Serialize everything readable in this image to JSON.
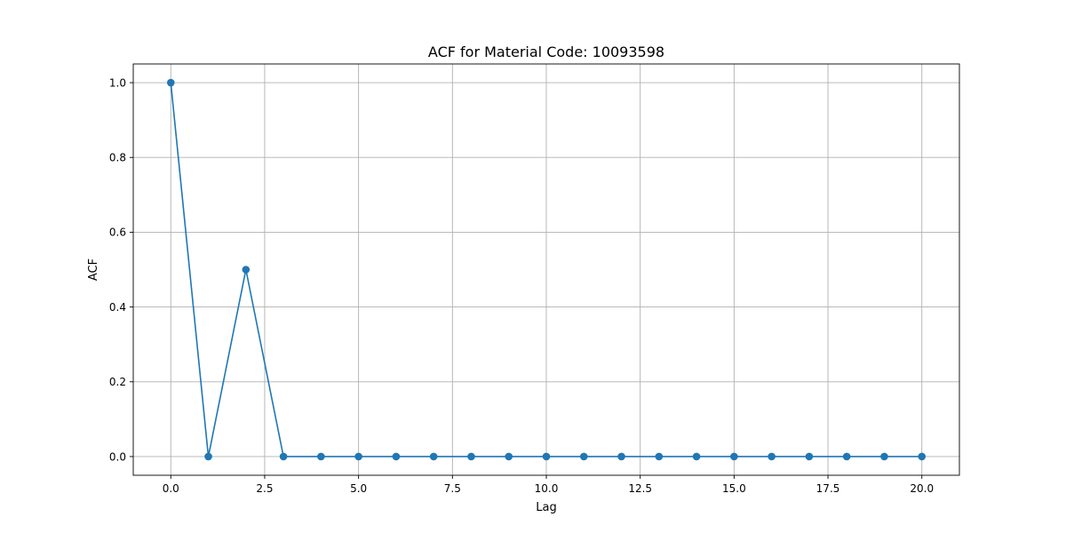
{
  "chart_data": {
    "type": "line",
    "title": "ACF for Material Code: 10093598",
    "xlabel": "Lag",
    "ylabel": "ACF",
    "xlim": [
      -1,
      21
    ],
    "ylim": [
      -0.05,
      1.05
    ],
    "xticks": [
      0,
      2.5,
      5,
      7.5,
      10,
      12.5,
      15,
      17.5,
      20
    ],
    "xtick_labels": [
      "0.0",
      "2.5",
      "5.0",
      "7.5",
      "10.0",
      "12.5",
      "15.0",
      "17.5",
      "20.0"
    ],
    "yticks": [
      0,
      0.2,
      0.4,
      0.6,
      0.8,
      1.0
    ],
    "ytick_labels": [
      "0.0",
      "0.2",
      "0.4",
      "0.6",
      "0.8",
      "1.0"
    ],
    "grid": true,
    "marker": "circle",
    "line_color": "#1f77b4",
    "x": [
      0,
      1,
      2,
      3,
      4,
      5,
      6,
      7,
      8,
      9,
      10,
      11,
      12,
      13,
      14,
      15,
      16,
      17,
      18,
      19,
      20
    ],
    "values": [
      1.0,
      0.0,
      0.5,
      0.0,
      0.0,
      0.0,
      0.0,
      0.0,
      0.0,
      0.0,
      0.0,
      0.0,
      0.0,
      0.0,
      0.0,
      0.0,
      0.0,
      0.0,
      0.0,
      0.0,
      0.0
    ]
  }
}
